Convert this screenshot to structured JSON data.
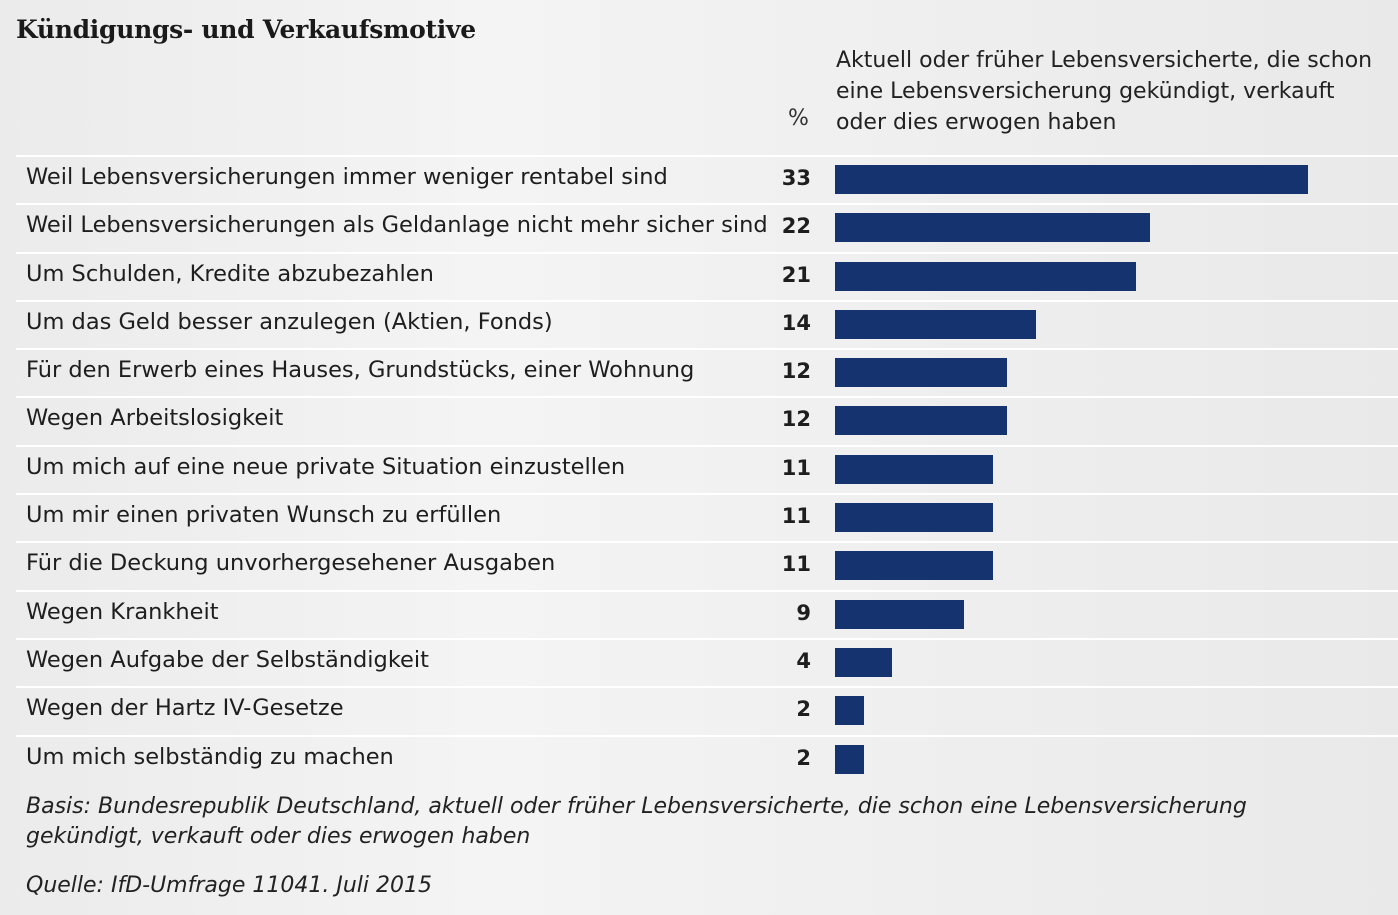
{
  "title": "Kündigungs- und Verkaufsmotive",
  "unit_header": "%",
  "chart_data": {
    "type": "bar",
    "orientation": "horizontal",
    "title": "Kündigungs- und Verkaufsmotive",
    "series": [
      {
        "name": "Aktuell oder früher Lebensversicherte, die schon eine Lebensversicherung gekündigt, verkauft oder dies erwogen haben",
        "values": [
          33,
          22,
          21,
          14,
          12,
          12,
          11,
          11,
          11,
          9,
          4,
          2,
          2
        ]
      }
    ],
    "categories": [
      "Weil Lebensversicherungen immer weniger rentabel sind",
      "Weil Lebensversicherungen als Geldanlage nicht mehr sicher sind",
      "Um Schulden, Kredite abzubezahlen",
      "Um das Geld besser anzulegen (Aktien, Fonds)",
      "Für den Erwerb eines Hauses, Grundstücks, einer Wohnung",
      "Wegen Arbeitslosigkeit",
      "Um mich auf eine neue private Situation einzustellen",
      "Um mir einen privaten Wunsch zu erfüllen",
      "Für die Deckung unvorhergesehener Ausgaben",
      "Wegen Krankheit",
      "Wegen Aufgabe der Selbständigkeit",
      "Wegen der Hartz IV-Gesetze",
      "Um mich selbständig zu machen"
    ],
    "xlim": [
      0,
      33
    ],
    "grid": false,
    "bar_color": "#14336f"
  },
  "footnote_basis": "Basis: Bundesrepublik Deutschland, aktuell oder früher Lebensversicherte, die schon eine Lebensversicherung gekündigt, verkauft oder dies erwogen haben",
  "footnote_source": "Quelle: IfD-Umfrage 11041. Juli 2015"
}
